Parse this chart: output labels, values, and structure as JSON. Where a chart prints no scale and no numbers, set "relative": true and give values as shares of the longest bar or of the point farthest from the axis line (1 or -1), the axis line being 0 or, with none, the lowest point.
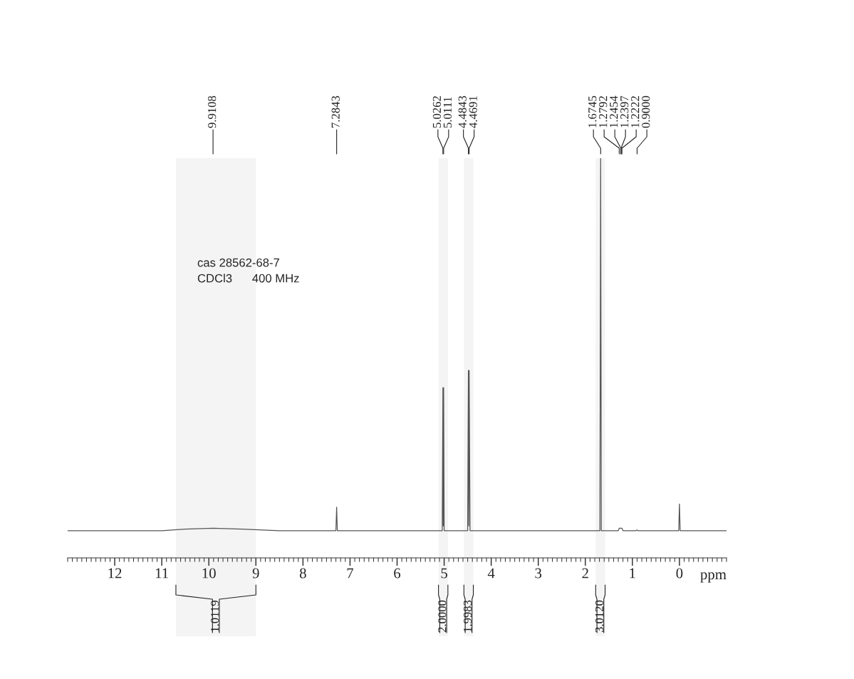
{
  "chart_data": {
    "type": "line",
    "relative": true,
    "xlabel": "ppm",
    "xlim": [
      13,
      -1
    ],
    "xticks": [
      12,
      11,
      10,
      9,
      8,
      7,
      6,
      5,
      4,
      3,
      2,
      1,
      0
    ],
    "grid": false,
    "legend": false,
    "marker": "none",
    "line_style": "solid",
    "series": [
      {
        "color": "#555555",
        "x": [
          13,
          11,
          10.5,
          9.9108,
          9.3,
          8.5,
          7.3,
          7.2843,
          7.27,
          5.04,
          5.0262,
          5.0187,
          5.0111,
          5.0,
          4.5,
          4.4843,
          4.4767,
          4.4691,
          4.45,
          1.69,
          1.6745,
          1.66,
          1.3,
          1.2792,
          1.2454,
          1.2397,
          1.2222,
          1.2,
          0.92,
          0.9,
          0.88,
          0.015,
          0,
          -0.015,
          -1
        ],
        "values": [
          0.068,
          0.068,
          0.072,
          0.074,
          0.072,
          0.068,
          0.068,
          0.127,
          0.068,
          0.068,
          0.426,
          0.08,
          0.426,
          0.068,
          0.068,
          0.469,
          0.08,
          0.469,
          0.068,
          0.068,
          1,
          0.068,
          0.068,
          0.074,
          0.074,
          0.074,
          0.074,
          0.068,
          0.068,
          0.07,
          0.068,
          0.068,
          0.135,
          0.068,
          0.068
        ]
      }
    ],
    "annotations": [
      "9.9108",
      "7.2843",
      "5.0262",
      "5.0111",
      "4.4843",
      "4.4691",
      "1.6745",
      "1.2792",
      "1.2454",
      "1.2397",
      "1.2222",
      "0.9000",
      "cas 28562-68-7",
      "CDCl3      400 MHz"
    ],
    "bands": [
      {
        "axis": "x",
        "from": 10.7,
        "to": 9.0,
        "label": "1.0119",
        "color": "#f4f4f4"
      },
      {
        "axis": "x",
        "from": 5.12,
        "to": 4.92,
        "label": "2.0000",
        "color": "#f4f4f4"
      },
      {
        "axis": "x",
        "from": 4.58,
        "to": 4.38,
        "label": "1.9983",
        "color": "#f4f4f4"
      },
      {
        "axis": "x",
        "from": 1.78,
        "to": 1.58,
        "label": "3.0120",
        "color": "#f4f4f4"
      }
    ]
  }
}
